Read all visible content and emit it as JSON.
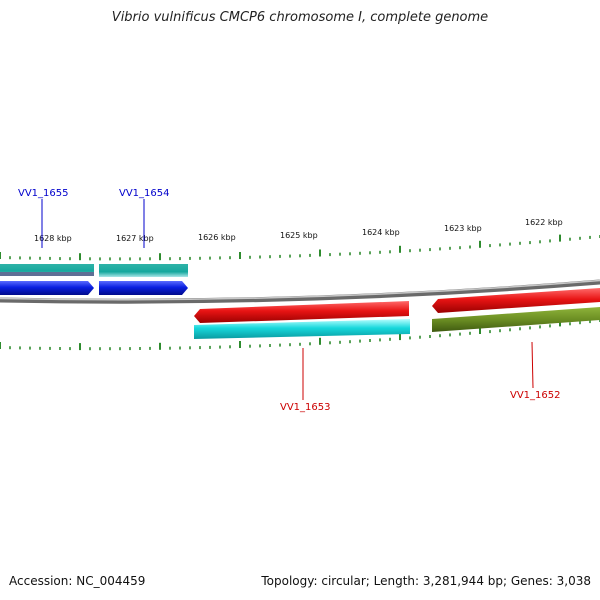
{
  "title": "Vibrio vulnificus CMCP6 chromosome I, complete genome",
  "footer": {
    "accession": "Accession: NC_004459",
    "stats": "Topology: circular; Length: 3,281,944 bp; Genes: 3,038"
  },
  "ticks": [
    "1628 kbp",
    "1627 kbp",
    "1626 kbp",
    "1625 kbp",
    "1624 kbp",
    "1623 kbp",
    "1622 kbp"
  ],
  "genes": [
    {
      "name": "VV1_1655",
      "color": "#0000cc"
    },
    {
      "name": "VV1_1654",
      "color": "#0000cc"
    },
    {
      "name": "VV1_1653",
      "color": "#cc0000"
    },
    {
      "name": "VV1_1652",
      "color": "#cc0000"
    }
  ],
  "colors": {
    "forward_cds": "#0a1fe0",
    "reverse_cds": "#e01010",
    "cyan_feature": "#17d3d8",
    "olive_feature": "#6b8e23",
    "backbone": "#808080",
    "ticks": "#2e8b2e"
  }
}
